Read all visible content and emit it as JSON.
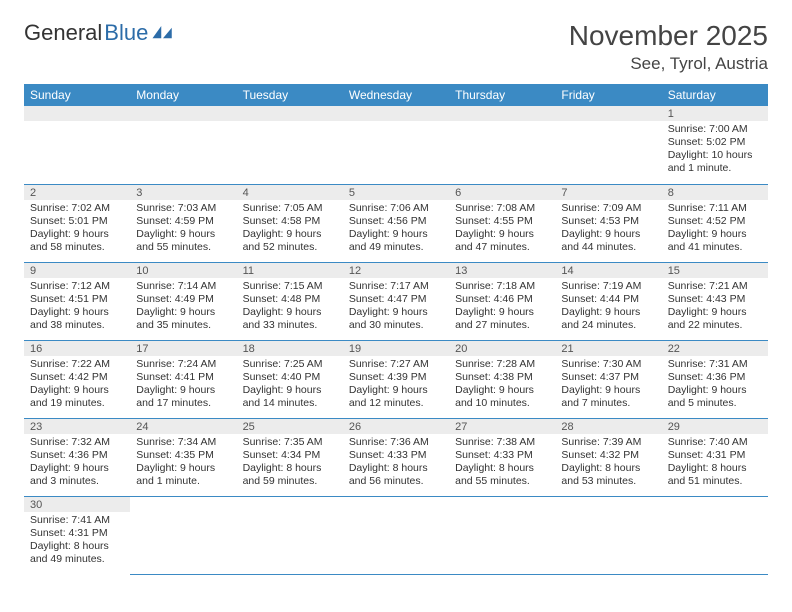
{
  "logo": {
    "part1": "General",
    "part2": "Blue"
  },
  "title": "November 2025",
  "location": "See, Tyrol, Austria",
  "colors": {
    "header_bg": "#3b8ac4",
    "header_text": "#ffffff",
    "daynum_bg": "#ececec",
    "cell_border": "#3b8ac4",
    "logo_blue": "#2c6ca8",
    "body_text": "#333333"
  },
  "weekdays": [
    "Sunday",
    "Monday",
    "Tuesday",
    "Wednesday",
    "Thursday",
    "Friday",
    "Saturday"
  ],
  "weeks": [
    [
      null,
      null,
      null,
      null,
      null,
      null,
      {
        "n": "1",
        "sunrise": "Sunrise: 7:00 AM",
        "sunset": "Sunset: 5:02 PM",
        "daylight": "Daylight: 10 hours and 1 minute."
      }
    ],
    [
      {
        "n": "2",
        "sunrise": "Sunrise: 7:02 AM",
        "sunset": "Sunset: 5:01 PM",
        "daylight": "Daylight: 9 hours and 58 minutes."
      },
      {
        "n": "3",
        "sunrise": "Sunrise: 7:03 AM",
        "sunset": "Sunset: 4:59 PM",
        "daylight": "Daylight: 9 hours and 55 minutes."
      },
      {
        "n": "4",
        "sunrise": "Sunrise: 7:05 AM",
        "sunset": "Sunset: 4:58 PM",
        "daylight": "Daylight: 9 hours and 52 minutes."
      },
      {
        "n": "5",
        "sunrise": "Sunrise: 7:06 AM",
        "sunset": "Sunset: 4:56 PM",
        "daylight": "Daylight: 9 hours and 49 minutes."
      },
      {
        "n": "6",
        "sunrise": "Sunrise: 7:08 AM",
        "sunset": "Sunset: 4:55 PM",
        "daylight": "Daylight: 9 hours and 47 minutes."
      },
      {
        "n": "7",
        "sunrise": "Sunrise: 7:09 AM",
        "sunset": "Sunset: 4:53 PM",
        "daylight": "Daylight: 9 hours and 44 minutes."
      },
      {
        "n": "8",
        "sunrise": "Sunrise: 7:11 AM",
        "sunset": "Sunset: 4:52 PM",
        "daylight": "Daylight: 9 hours and 41 minutes."
      }
    ],
    [
      {
        "n": "9",
        "sunrise": "Sunrise: 7:12 AM",
        "sunset": "Sunset: 4:51 PM",
        "daylight": "Daylight: 9 hours and 38 minutes."
      },
      {
        "n": "10",
        "sunrise": "Sunrise: 7:14 AM",
        "sunset": "Sunset: 4:49 PM",
        "daylight": "Daylight: 9 hours and 35 minutes."
      },
      {
        "n": "11",
        "sunrise": "Sunrise: 7:15 AM",
        "sunset": "Sunset: 4:48 PM",
        "daylight": "Daylight: 9 hours and 33 minutes."
      },
      {
        "n": "12",
        "sunrise": "Sunrise: 7:17 AM",
        "sunset": "Sunset: 4:47 PM",
        "daylight": "Daylight: 9 hours and 30 minutes."
      },
      {
        "n": "13",
        "sunrise": "Sunrise: 7:18 AM",
        "sunset": "Sunset: 4:46 PM",
        "daylight": "Daylight: 9 hours and 27 minutes."
      },
      {
        "n": "14",
        "sunrise": "Sunrise: 7:19 AM",
        "sunset": "Sunset: 4:44 PM",
        "daylight": "Daylight: 9 hours and 24 minutes."
      },
      {
        "n": "15",
        "sunrise": "Sunrise: 7:21 AM",
        "sunset": "Sunset: 4:43 PM",
        "daylight": "Daylight: 9 hours and 22 minutes."
      }
    ],
    [
      {
        "n": "16",
        "sunrise": "Sunrise: 7:22 AM",
        "sunset": "Sunset: 4:42 PM",
        "daylight": "Daylight: 9 hours and 19 minutes."
      },
      {
        "n": "17",
        "sunrise": "Sunrise: 7:24 AM",
        "sunset": "Sunset: 4:41 PM",
        "daylight": "Daylight: 9 hours and 17 minutes."
      },
      {
        "n": "18",
        "sunrise": "Sunrise: 7:25 AM",
        "sunset": "Sunset: 4:40 PM",
        "daylight": "Daylight: 9 hours and 14 minutes."
      },
      {
        "n": "19",
        "sunrise": "Sunrise: 7:27 AM",
        "sunset": "Sunset: 4:39 PM",
        "daylight": "Daylight: 9 hours and 12 minutes."
      },
      {
        "n": "20",
        "sunrise": "Sunrise: 7:28 AM",
        "sunset": "Sunset: 4:38 PM",
        "daylight": "Daylight: 9 hours and 10 minutes."
      },
      {
        "n": "21",
        "sunrise": "Sunrise: 7:30 AM",
        "sunset": "Sunset: 4:37 PM",
        "daylight": "Daylight: 9 hours and 7 minutes."
      },
      {
        "n": "22",
        "sunrise": "Sunrise: 7:31 AM",
        "sunset": "Sunset: 4:36 PM",
        "daylight": "Daylight: 9 hours and 5 minutes."
      }
    ],
    [
      {
        "n": "23",
        "sunrise": "Sunrise: 7:32 AM",
        "sunset": "Sunset: 4:36 PM",
        "daylight": "Daylight: 9 hours and 3 minutes."
      },
      {
        "n": "24",
        "sunrise": "Sunrise: 7:34 AM",
        "sunset": "Sunset: 4:35 PM",
        "daylight": "Daylight: 9 hours and 1 minute."
      },
      {
        "n": "25",
        "sunrise": "Sunrise: 7:35 AM",
        "sunset": "Sunset: 4:34 PM",
        "daylight": "Daylight: 8 hours and 59 minutes."
      },
      {
        "n": "26",
        "sunrise": "Sunrise: 7:36 AM",
        "sunset": "Sunset: 4:33 PM",
        "daylight": "Daylight: 8 hours and 56 minutes."
      },
      {
        "n": "27",
        "sunrise": "Sunrise: 7:38 AM",
        "sunset": "Sunset: 4:33 PM",
        "daylight": "Daylight: 8 hours and 55 minutes."
      },
      {
        "n": "28",
        "sunrise": "Sunrise: 7:39 AM",
        "sunset": "Sunset: 4:32 PM",
        "daylight": "Daylight: 8 hours and 53 minutes."
      },
      {
        "n": "29",
        "sunrise": "Sunrise: 7:40 AM",
        "sunset": "Sunset: 4:31 PM",
        "daylight": "Daylight: 8 hours and 51 minutes."
      }
    ],
    [
      {
        "n": "30",
        "sunrise": "Sunrise: 7:41 AM",
        "sunset": "Sunset: 4:31 PM",
        "daylight": "Daylight: 8 hours and 49 minutes."
      },
      null,
      null,
      null,
      null,
      null,
      null
    ]
  ]
}
